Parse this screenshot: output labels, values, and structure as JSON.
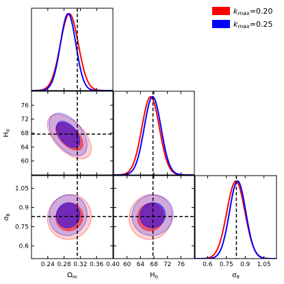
{
  "chart_data": {
    "type": "corner",
    "parameters": [
      {
        "key": "om",
        "label_main": "Ω",
        "label_sub": "m",
        "range": [
          0.2,
          0.4
        ],
        "ticks": [
          0.24,
          0.28,
          0.32,
          0.36,
          0.4
        ],
        "tick_labels": [
          "0.24",
          "0.28",
          "0.32",
          "0.36",
          "0.40"
        ],
        "truth": 0.3125
      },
      {
        "key": "h0",
        "label_main": "H",
        "label_sub": "0",
        "range": [
          56,
          80
        ],
        "ticks": [
          60,
          64,
          68,
          72,
          76
        ],
        "tick_labels": [
          "60",
          "64",
          "68",
          "72",
          "76"
        ],
        "truth": 67.7
      },
      {
        "key": "s8",
        "label_main": "σ",
        "label_sub": "8",
        "range": [
          0.5,
          1.15
        ],
        "ticks": [
          0.6,
          0.75,
          0.9,
          1.05
        ],
        "tick_labels": [
          "0.6",
          "0.75",
          "0.9",
          "1.05"
        ],
        "truth": 0.83
      }
    ],
    "series": [
      {
        "name_main": "k",
        "name_sub": "max",
        "name_tail": "=0.20",
        "color": "#ff0000",
        "mean": [
          0.293,
          67.0,
          0.826
        ],
        "sigma": [
          0.022,
          2.6,
          0.072
        ],
        "corr": {
          "om_h0": -0.55,
          "om_s8": 0.05,
          "h0_s8": 0.05
        }
      },
      {
        "name_main": "k",
        "name_sub": "max",
        "name_tail": "=0.25",
        "color": "#0000ff",
        "mean": [
          0.29,
          67.6,
          0.84
        ],
        "sigma": [
          0.019,
          2.5,
          0.065
        ],
        "corr": {
          "om_h0": -0.5,
          "om_s8": 0.05,
          "h0_s8": 0.05
        }
      }
    ],
    "overlap_color": "#5e0a9a",
    "truth_style": "dashed-black",
    "legend_position": "top-right",
    "grid": false
  }
}
